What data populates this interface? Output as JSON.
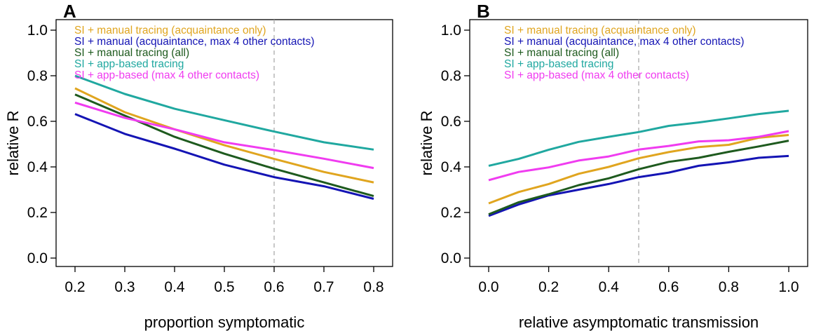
{
  "chart_data": [
    {
      "panel": "A",
      "type": "line",
      "xlabel": "proportion symptomatic",
      "ylabel": "relative R",
      "xlim": [
        0.2,
        0.8
      ],
      "ylim": [
        0.0,
        1.0
      ],
      "xticks": [
        0.2,
        0.3,
        0.4,
        0.5,
        0.6,
        0.7,
        0.8
      ],
      "xtick_labels": [
        "0.2",
        "0.3",
        "0.4",
        "0.5",
        "0.6",
        "0.7",
        "0.8"
      ],
      "yticks": [
        0.0,
        0.2,
        0.4,
        0.6,
        0.8,
        1.0
      ],
      "ytick_labels": [
        "0.0",
        "0.2",
        "0.4",
        "0.6",
        "0.8",
        "1.0"
      ],
      "reference_line_x": 0.6,
      "legend_position": "top-left",
      "grid": false,
      "x": [
        0.2,
        0.3,
        0.4,
        0.5,
        0.6,
        0.7,
        0.8
      ],
      "series": [
        {
          "name": "SI + manual tracing (acquaintance only)",
          "color": "#E0A51F",
          "values": [
            0.745,
            0.64,
            0.565,
            0.495,
            0.435,
            0.378,
            0.332
          ]
        },
        {
          "name": "SI + manual (acquaintance, max 4 other contacts)",
          "color": "#1414B4",
          "values": [
            0.632,
            0.545,
            0.48,
            0.41,
            0.355,
            0.315,
            0.26
          ]
        },
        {
          "name": "SI + manual tracing (all)",
          "color": "#1E5A1E",
          "values": [
            0.718,
            0.625,
            0.532,
            0.458,
            0.392,
            0.332,
            0.272
          ]
        },
        {
          "name": "SI + app-based tracing",
          "color": "#20A8A0",
          "values": [
            0.8,
            0.72,
            0.655,
            0.605,
            0.555,
            0.508,
            0.476
          ]
        },
        {
          "name": "SI + app-based (max 4 other contacts)",
          "color": "#F03CF0",
          "values": [
            0.682,
            0.615,
            0.565,
            0.508,
            0.474,
            0.436,
            0.395
          ]
        }
      ]
    },
    {
      "panel": "B",
      "type": "line",
      "xlabel": "relative asymptomatic transmission",
      "ylabel": "relative R",
      "xlim": [
        0.0,
        1.0
      ],
      "ylim": [
        0.0,
        1.0
      ],
      "xticks": [
        0.0,
        0.2,
        0.4,
        0.6,
        0.8,
        1.0
      ],
      "xtick_labels": [
        "0.0",
        "0.2",
        "0.4",
        "0.6",
        "0.8",
        "1.0"
      ],
      "yticks": [
        0.0,
        0.2,
        0.4,
        0.6,
        0.8,
        1.0
      ],
      "ytick_labels": [
        "0.0",
        "0.2",
        "0.4",
        "0.6",
        "0.8",
        "1.0"
      ],
      "reference_line_x": 0.5,
      "legend_position": "top-left",
      "grid": false,
      "x": [
        0.0,
        0.1,
        0.2,
        0.3,
        0.4,
        0.5,
        0.6,
        0.7,
        0.8,
        0.9,
        1.0
      ],
      "series": [
        {
          "name": "SI + manual tracing (acquaintance only)",
          "color": "#E0A51F",
          "values": [
            0.24,
            0.29,
            0.325,
            0.37,
            0.4,
            0.438,
            0.465,
            0.487,
            0.497,
            0.528,
            0.54
          ]
        },
        {
          "name": "SI + manual (acquaintance, max 4 other contacts)",
          "color": "#1414B4",
          "values": [
            0.185,
            0.235,
            0.275,
            0.3,
            0.325,
            0.355,
            0.375,
            0.405,
            0.42,
            0.44,
            0.448
          ]
        },
        {
          "name": "SI + manual tracing (all)",
          "color": "#1E5A1E",
          "values": [
            0.192,
            0.245,
            0.28,
            0.32,
            0.35,
            0.39,
            0.422,
            0.44,
            0.466,
            0.49,
            0.515
          ]
        },
        {
          "name": "SI + app-based tracing",
          "color": "#20A8A0",
          "values": [
            0.405,
            0.435,
            0.475,
            0.51,
            0.532,
            0.553,
            0.58,
            0.595,
            0.613,
            0.632,
            0.646
          ]
        },
        {
          "name": "SI + app-based (max 4 other contacts)",
          "color": "#F03CF0",
          "values": [
            0.342,
            0.378,
            0.398,
            0.428,
            0.446,
            0.476,
            0.492,
            0.512,
            0.517,
            0.532,
            0.557
          ]
        }
      ]
    }
  ]
}
